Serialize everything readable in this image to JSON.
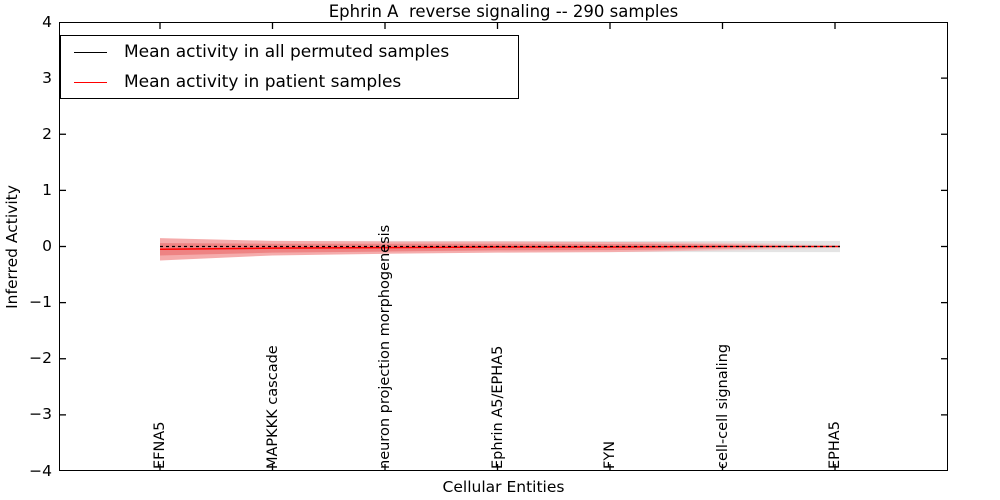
{
  "title": "Ephrin A  reverse signaling -- 290 samples",
  "legend": {
    "items": [
      {
        "label": "Mean activity in all permuted samples",
        "color": "#000000",
        "style": "solid"
      },
      {
        "label": "Mean activity in patient samples",
        "color": "#ff0000",
        "style": "solid"
      }
    ],
    "position": "upper left"
  },
  "chart_data": {
    "type": "line",
    "title": "Ephrin A  reverse signaling -- 290 samples",
    "xlabel": "Cellular Entities",
    "ylabel": "Inferred Activity",
    "ylim": [
      -4,
      4
    ],
    "grid": false,
    "legend_position": "upper left",
    "y_ticks": [
      "4",
      "3",
      "2",
      "1",
      "0",
      "−1",
      "−2",
      "−3",
      "−4"
    ],
    "y_tick_values": [
      4,
      3,
      2,
      1,
      0,
      -1,
      -2,
      -3,
      -4
    ],
    "categories": [
      "EFNA5",
      "MAPKKK cascade",
      "neuron projection morphogenesis",
      "Ephrin A5/EPHA5",
      "FYN",
      "cell-cell signaling",
      "EPHA5"
    ],
    "series": [
      {
        "name": "Mean activity in all permuted samples",
        "color": "#000000",
        "style": "dashed",
        "values": [
          0,
          0,
          0,
          0,
          0,
          0,
          0
        ]
      },
      {
        "name": "Mean activity in patient samples",
        "color": "#ff0000",
        "style": "solid",
        "values": [
          -0.05,
          -0.03,
          -0.02,
          -0.01,
          -0.01,
          0,
          0
        ]
      }
    ],
    "bands": [
      {
        "name": "permuted-samples-spread",
        "color": "#e4e4e4",
        "fade": false,
        "center": [
          0,
          0,
          0,
          0,
          0,
          0,
          0
        ],
        "half_width": [
          0.1,
          0.1,
          0.1,
          0.1,
          0.1,
          0.1,
          0.1
        ]
      },
      {
        "name": "patient-samples-spread-outer",
        "color": "#f5abab",
        "fade": true,
        "center": [
          -0.05,
          -0.03,
          -0.02,
          -0.01,
          -0.01,
          0,
          0
        ],
        "half_width": [
          0.2,
          0.13,
          0.11,
          0.1,
          0.09,
          0.07,
          0.05
        ]
      },
      {
        "name": "patient-samples-spread-inner",
        "color": "#ee8383",
        "fade": true,
        "center": [
          -0.05,
          -0.03,
          -0.02,
          -0.01,
          -0.01,
          0,
          0
        ],
        "half_width": [
          0.11,
          0.08,
          0.07,
          0.06,
          0.055,
          0.045,
          0.035
        ]
      }
    ]
  }
}
